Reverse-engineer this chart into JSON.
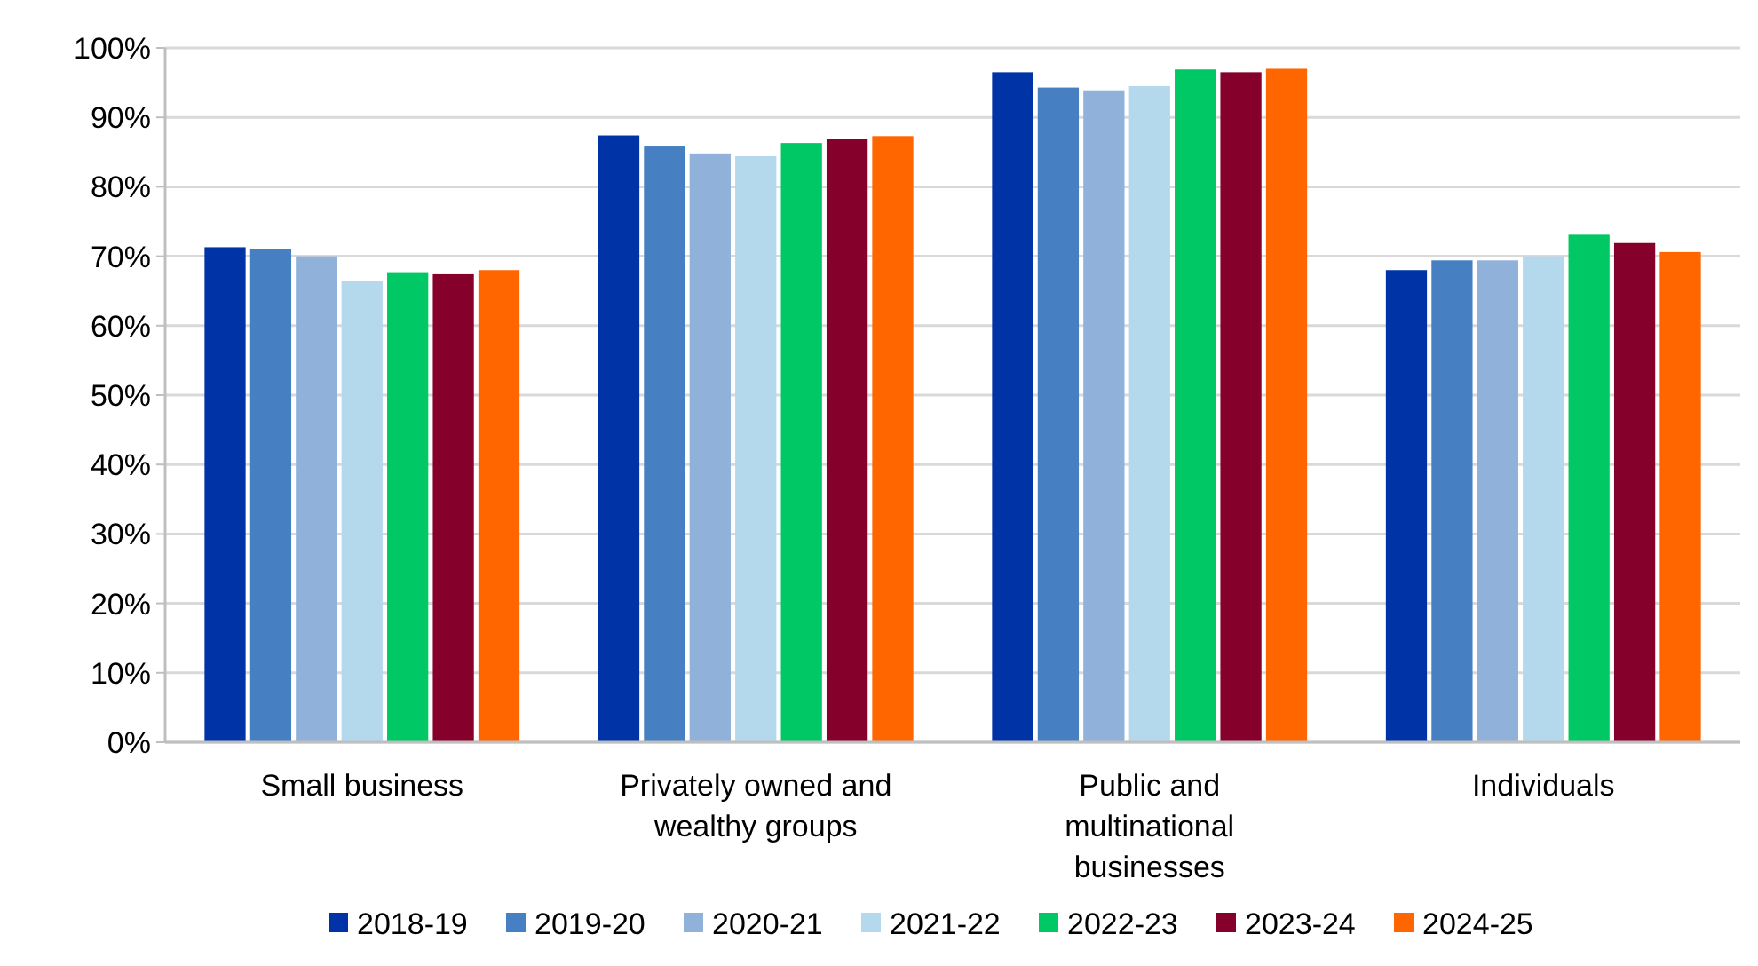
{
  "chart_data": {
    "type": "bar",
    "categories": [
      "Small business",
      "Privately owned and wealthy groups",
      "Public and multinational businesses",
      "Individuals"
    ],
    "series": [
      {
        "name": "2018-19",
        "color": "#0033a6",
        "values": [
          71.3,
          87.4,
          96.5,
          68.0
        ]
      },
      {
        "name": "2019-20",
        "color": "#4680c2",
        "values": [
          71.0,
          85.8,
          94.3,
          69.4
        ]
      },
      {
        "name": "2020-21",
        "color": "#8fb1da",
        "values": [
          70.0,
          84.8,
          93.9,
          69.4
        ]
      },
      {
        "name": "2021-22",
        "color": "#b4d8ec",
        "values": [
          66.4,
          84.4,
          94.5,
          70.0
        ]
      },
      {
        "name": "2022-23",
        "color": "#00c864",
        "values": [
          67.7,
          86.3,
          96.9,
          73.1
        ]
      },
      {
        "name": "2023-24",
        "color": "#86002c",
        "values": [
          67.4,
          86.9,
          96.5,
          71.9
        ]
      },
      {
        "name": "2024-25",
        "color": "#ff6600",
        "values": [
          68.0,
          87.3,
          97.0,
          70.6
        ]
      }
    ],
    "ylim": [
      0,
      100
    ],
    "yticks": [
      {
        "value": 0,
        "label": "0%"
      },
      {
        "value": 10,
        "label": "10%"
      },
      {
        "value": 20,
        "label": "20%"
      },
      {
        "value": 30,
        "label": "30%"
      },
      {
        "value": 40,
        "label": "40%"
      },
      {
        "value": 50,
        "label": "50%"
      },
      {
        "value": 60,
        "label": "60%"
      },
      {
        "value": 70,
        "label": "70%"
      },
      {
        "value": 80,
        "label": "80%"
      },
      {
        "value": 90,
        "label": "90%"
      },
      {
        "value": 100,
        "label": "100%"
      }
    ],
    "grid": "y",
    "legend": "bottom"
  }
}
